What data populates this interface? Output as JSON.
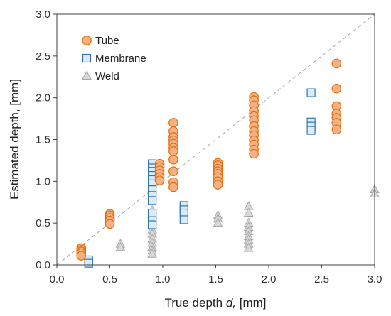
{
  "chart_data": {
    "type": "scatter",
    "xlabel": "True depth d, [mm]",
    "xlabel_prefix": "True depth ",
    "xlabel_var": "d,",
    "xlabel_suffix": " [mm]",
    "ylabel": "Estimated depth, [mm]",
    "xlim": [
      0,
      3
    ],
    "ylim": [
      0,
      3
    ],
    "xticks": [
      "0.0",
      "0.5",
      "1.0",
      "1.5",
      "2.0",
      "2.5",
      "3.0"
    ],
    "yticks": [
      "0.0",
      "0.5",
      "1.0",
      "1.5",
      "2.0",
      "2.5",
      "3.0"
    ],
    "grid": false,
    "legend_position": "top-left",
    "reference_line": {
      "style": "dashed",
      "color": "#a6a6a6",
      "from": [
        0,
        0
      ],
      "to": [
        3,
        3
      ]
    },
    "series": [
      {
        "name": "Tube",
        "marker": "circle",
        "fill": "#f4b183",
        "stroke": "#e46c0a",
        "points": [
          [
            0.23,
            0.2
          ],
          [
            0.23,
            0.18
          ],
          [
            0.23,
            0.16
          ],
          [
            0.23,
            0.14
          ],
          [
            0.23,
            0.11
          ],
          [
            0.5,
            0.61
          ],
          [
            0.5,
            0.59
          ],
          [
            0.5,
            0.56
          ],
          [
            0.5,
            0.53
          ],
          [
            0.5,
            0.49
          ],
          [
            0.97,
            1.21
          ],
          [
            0.97,
            1.17
          ],
          [
            0.97,
            1.13
          ],
          [
            0.97,
            1.09
          ],
          [
            0.97,
            1.05
          ],
          [
            0.97,
            1.01
          ],
          [
            1.1,
            1.7
          ],
          [
            1.1,
            1.6
          ],
          [
            1.1,
            1.53
          ],
          [
            1.1,
            1.49
          ],
          [
            1.1,
            1.45
          ],
          [
            1.1,
            1.4
          ],
          [
            1.1,
            1.36
          ],
          [
            1.1,
            1.26
          ],
          [
            1.1,
            1.12
          ],
          [
            1.1,
            0.99
          ],
          [
            1.1,
            0.93
          ],
          [
            1.52,
            1.22
          ],
          [
            1.52,
            1.19
          ],
          [
            1.52,
            1.15
          ],
          [
            1.52,
            1.12
          ],
          [
            1.52,
            1.09
          ],
          [
            1.52,
            1.05
          ],
          [
            1.52,
            1.0
          ],
          [
            1.52,
            0.96
          ],
          [
            1.86,
            2.01
          ],
          [
            1.86,
            1.97
          ],
          [
            1.86,
            1.91
          ],
          [
            1.86,
            1.84
          ],
          [
            1.86,
            1.78
          ],
          [
            1.86,
            1.73
          ],
          [
            1.86,
            1.66
          ],
          [
            1.86,
            1.6
          ],
          [
            1.86,
            1.55
          ],
          [
            1.86,
            1.49
          ],
          [
            1.86,
            1.44
          ],
          [
            1.86,
            1.38
          ],
          [
            1.86,
            1.33
          ],
          [
            2.64,
            2.41
          ],
          [
            2.64,
            2.11
          ],
          [
            2.64,
            1.9
          ],
          [
            2.64,
            1.81
          ],
          [
            2.64,
            1.76
          ],
          [
            2.64,
            1.7
          ],
          [
            2.64,
            1.62
          ]
        ]
      },
      {
        "name": "Membrane",
        "marker": "square",
        "fill": "#ddebf7",
        "stroke": "#2e75b6",
        "points": [
          [
            0.3,
            0.06
          ],
          [
            0.3,
            0.02
          ],
          [
            0.9,
            1.21
          ],
          [
            0.9,
            1.16
          ],
          [
            0.9,
            1.12
          ],
          [
            0.9,
            1.07
          ],
          [
            0.9,
            1.02
          ],
          [
            0.9,
            0.97
          ],
          [
            0.9,
            0.9
          ],
          [
            0.9,
            0.83
          ],
          [
            0.9,
            0.77
          ],
          [
            0.9,
            0.62
          ],
          [
            0.9,
            0.53
          ],
          [
            0.9,
            0.48
          ],
          [
            1.2,
            0.71
          ],
          [
            1.2,
            0.66
          ],
          [
            1.2,
            0.62
          ],
          [
            1.2,
            0.54
          ],
          [
            2.4,
            2.06
          ],
          [
            2.4,
            1.71
          ],
          [
            2.4,
            1.66
          ],
          [
            2.4,
            1.61
          ]
        ]
      },
      {
        "name": "Weld",
        "marker": "triangle",
        "fill": "#d9d9d9",
        "stroke": "#a6a6a6",
        "points": [
          [
            0.6,
            0.25
          ],
          [
            0.6,
            0.21
          ],
          [
            0.9,
            0.65
          ],
          [
            0.9,
            0.6
          ],
          [
            0.9,
            0.55
          ],
          [
            0.9,
            0.49
          ],
          [
            0.9,
            0.42
          ],
          [
            0.9,
            0.37
          ],
          [
            0.9,
            0.31
          ],
          [
            0.9,
            0.26
          ],
          [
            0.9,
            0.21
          ],
          [
            0.9,
            0.17
          ],
          [
            0.9,
            0.13
          ],
          [
            1.52,
            0.59
          ],
          [
            1.52,
            0.55
          ],
          [
            1.52,
            0.5
          ],
          [
            1.81,
            0.7
          ],
          [
            1.81,
            0.62
          ],
          [
            1.81,
            0.5
          ],
          [
            1.81,
            0.45
          ],
          [
            1.81,
            0.4
          ],
          [
            1.81,
            0.34
          ],
          [
            1.81,
            0.3
          ],
          [
            1.81,
            0.25
          ],
          [
            1.81,
            0.2
          ],
          [
            3.0,
            0.9
          ],
          [
            3.0,
            0.85
          ]
        ]
      }
    ]
  }
}
